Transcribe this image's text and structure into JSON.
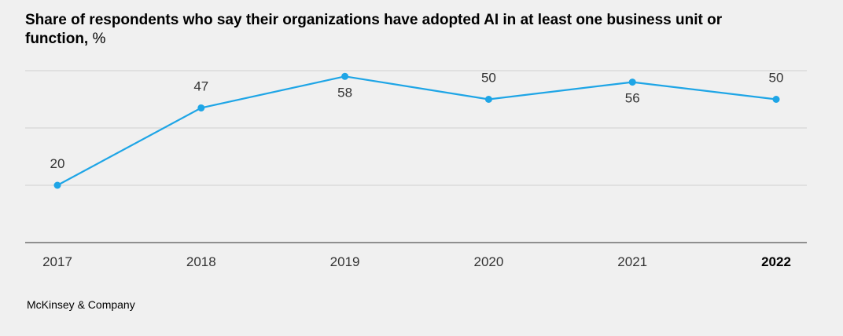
{
  "chart_data": {
    "type": "line",
    "title": "Share of respondents who say their organizations have adopted AI in at least one business unit or function,",
    "title_unit": "%",
    "categories": [
      "2017",
      "2018",
      "2019",
      "2020",
      "2021",
      "2022"
    ],
    "series": [
      {
        "values": [
          20,
          47,
          58,
          50,
          56,
          50
        ],
        "color": "#1ea5e6"
      }
    ],
    "label_positions": [
      "above",
      "above",
      "below",
      "above",
      "below",
      "above"
    ],
    "highlighted_category": "2022",
    "ylim": [
      0,
      60
    ],
    "gridlines": [
      20,
      40,
      60
    ],
    "grid": true,
    "legend": "none",
    "xlabel": "",
    "ylabel": ""
  },
  "source": "McKinsey & Company",
  "colors": {
    "line": "#1ea5e6",
    "grid": "#cfcfcf",
    "axis": "#555555",
    "background": "#f0f0f0",
    "label": "#333333"
  }
}
